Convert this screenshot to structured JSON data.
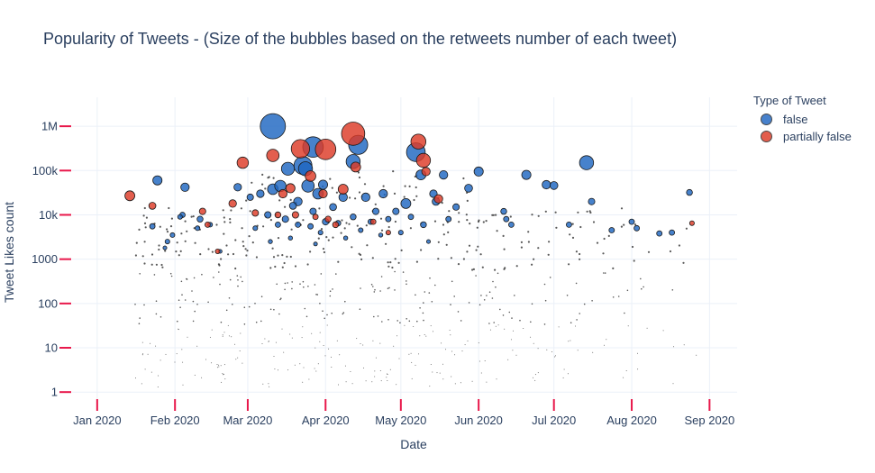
{
  "chart_data": {
    "type": "scatter",
    "title": "Popularity of Tweets - (Size of the bubbles based on the retweets number of each tweet)",
    "xlabel": "Date",
    "ylabel": "Tweet Likes count",
    "y_scale": "log",
    "ylim": [
      0.5,
      4500000
    ],
    "xlim": [
      "2019-12-22",
      "2020-09-12"
    ],
    "x_tick_labels": [
      "Jan 2020",
      "Feb 2020",
      "Mar 2020",
      "Apr 2020",
      "May 2020",
      "Jun 2020",
      "Jul 2020",
      "Aug 2020",
      "Sep 2020"
    ],
    "x_ticks": [
      "2020-01-01",
      "2020-02-01",
      "2020-03-01",
      "2020-04-01",
      "2020-05-01",
      "2020-06-01",
      "2020-07-01",
      "2020-08-01",
      "2020-09-01"
    ],
    "y_tick_labels": [
      "1",
      "10",
      "100",
      "1000",
      "10k",
      "100k",
      "1M"
    ],
    "y_ticks": [
      1,
      10,
      100,
      1000,
      10000,
      100000,
      1000000
    ],
    "grid": true,
    "legend": {
      "title": "Type of Tweet",
      "position": "top-right"
    },
    "colors": {
      "false": "#1f66c1",
      "partially false": "#dd3b27",
      "tick": "#e8174a",
      "grid": "#ebf0f8"
    },
    "series": [
      {
        "name": "false",
        "points": [
          [
            "2020-03-11",
            1000000,
            45000
          ],
          [
            "2020-03-27",
            340000,
            30000
          ],
          [
            "2020-04-14",
            380000,
            26000
          ],
          [
            "2020-05-07",
            260000,
            25000
          ],
          [
            "2020-07-14",
            150000,
            14000
          ],
          [
            "2020-04-12",
            160000,
            14000
          ],
          [
            "2020-03-23",
            130000,
            23000
          ],
          [
            "2020-03-24",
            110000,
            14000
          ],
          [
            "2020-03-17",
            110000,
            12000
          ],
          [
            "2020-03-25",
            45000,
            11000
          ],
          [
            "2020-03-11",
            38000,
            8000
          ],
          [
            "2020-03-14",
            45000,
            9000
          ],
          [
            "2020-01-25",
            60000,
            6000
          ],
          [
            "2020-02-05",
            42000,
            5000
          ],
          [
            "2020-03-29",
            30000,
            8000
          ],
          [
            "2020-05-09",
            80000,
            7000
          ],
          [
            "2020-06-01",
            95000,
            6000
          ],
          [
            "2020-06-20",
            80000,
            6000
          ],
          [
            "2020-06-28",
            48000,
            5000
          ],
          [
            "2020-07-01",
            46000,
            4500
          ],
          [
            "2020-05-28",
            40000,
            4500
          ],
          [
            "2020-05-18",
            80000,
            5000
          ],
          [
            "2020-05-03",
            18000,
            7000
          ],
          [
            "2020-04-17",
            25000,
            5000
          ],
          [
            "2020-04-08",
            25000,
            5000
          ],
          [
            "2020-03-21",
            20000,
            5000
          ],
          [
            "2020-03-31",
            48000,
            6000
          ],
          [
            "2020-04-24",
            30000,
            5000
          ],
          [
            "2020-03-06",
            30000,
            4000
          ],
          [
            "2020-02-26",
            42000,
            4000
          ],
          [
            "2020-03-02",
            25000,
            3000
          ],
          [
            "2020-05-14",
            30000,
            4000
          ],
          [
            "2020-05-15",
            20000,
            4000
          ],
          [
            "2020-07-16",
            20000,
            3000
          ],
          [
            "2020-08-24",
            32000,
            2500
          ],
          [
            "2020-02-11",
            8000,
            2500
          ],
          [
            "2020-01-23",
            5500,
            2000
          ],
          [
            "2020-02-04",
            10000,
            2000
          ],
          [
            "2020-06-11",
            12000,
            2500
          ],
          [
            "2020-06-12",
            8000,
            2000
          ],
          [
            "2020-06-14",
            6000,
            2000
          ],
          [
            "2020-08-01",
            7000,
            2000
          ],
          [
            "2020-08-03",
            5000,
            2000
          ],
          [
            "2020-08-12",
            3800,
            2000
          ],
          [
            "2020-08-17",
            4000,
            2000
          ],
          [
            "2020-07-07",
            6000,
            2000
          ],
          [
            "2020-07-24",
            4500,
            2000
          ],
          [
            "2020-05-23",
            15000,
            3000
          ],
          [
            "2020-04-04",
            15000,
            3500
          ],
          [
            "2020-04-21",
            12000,
            3000
          ],
          [
            "2020-03-19",
            16000,
            3500
          ],
          [
            "2020-03-09",
            10000,
            3000
          ],
          [
            "2020-03-16",
            8000,
            3000
          ],
          [
            "2020-03-27",
            12000,
            3000
          ],
          [
            "2020-04-29",
            12000,
            3000
          ],
          [
            "2020-04-01",
            7000,
            3000
          ],
          [
            "2020-04-12",
            9000,
            2500
          ],
          [
            "2020-05-10",
            6000,
            2500
          ],
          [
            "2020-01-29",
            2500,
            1500
          ],
          [
            "2020-01-31",
            3500,
            1500
          ],
          [
            "2020-02-03",
            9000,
            1500
          ],
          [
            "2020-03-13",
            6000,
            2000
          ],
          [
            "2020-03-21",
            6000,
            2000
          ],
          [
            "2020-03-26",
            5500,
            2000
          ],
          [
            "2020-04-06",
            6500,
            2000
          ],
          [
            "2020-04-19",
            7000,
            2000
          ],
          [
            "2020-04-26",
            8000,
            2000
          ],
          [
            "2020-05-05",
            9000,
            2000
          ],
          [
            "2020-05-20",
            8000,
            2000
          ],
          [
            "2020-03-04",
            5000,
            1500
          ],
          [
            "2020-03-30",
            4000,
            1500
          ],
          [
            "2020-04-15",
            4500,
            1500
          ],
          [
            "2020-05-01",
            4000,
            1500
          ],
          [
            "2020-02-15",
            6000,
            1500
          ],
          [
            "2020-02-10",
            5000,
            1500
          ],
          [
            "2020-03-10",
            2500,
            1200
          ],
          [
            "2020-03-18",
            3000,
            1200
          ],
          [
            "2020-04-09",
            3000,
            1200
          ],
          [
            "2020-04-23",
            3500,
            1200
          ],
          [
            "2020-01-28",
            1800,
            1000
          ],
          [
            "2020-02-19",
            1500,
            1000
          ],
          [
            "2020-03-28",
            2200,
            1000
          ],
          [
            "2020-05-12",
            2500,
            1000
          ]
        ]
      },
      {
        "name": "partially false",
        "points": [
          [
            "2020-04-12",
            680000,
            38000
          ],
          [
            "2020-04-01",
            300000,
            30000
          ],
          [
            "2020-03-22",
            310000,
            24000
          ],
          [
            "2020-05-08",
            450000,
            16000
          ],
          [
            "2020-05-10",
            170000,
            14000
          ],
          [
            "2020-03-11",
            220000,
            11000
          ],
          [
            "2020-02-28",
            150000,
            9000
          ],
          [
            "2020-01-14",
            27000,
            7000
          ],
          [
            "2020-03-26",
            75000,
            8000
          ],
          [
            "2020-04-13",
            120000,
            7000
          ],
          [
            "2020-04-08",
            38000,
            7000
          ],
          [
            "2020-05-11",
            95000,
            5000
          ],
          [
            "2020-05-16",
            23000,
            5000
          ],
          [
            "2020-03-18",
            40000,
            6000
          ],
          [
            "2020-03-15",
            30000,
            5000
          ],
          [
            "2020-03-31",
            30000,
            5000
          ],
          [
            "2020-02-24",
            18000,
            4000
          ],
          [
            "2020-01-23",
            16000,
            3500
          ],
          [
            "2020-02-12",
            12000,
            3000
          ],
          [
            "2020-03-04",
            11000,
            3000
          ],
          [
            "2020-03-20",
            10000,
            3000
          ],
          [
            "2020-04-02",
            8000,
            2500
          ],
          [
            "2020-04-05",
            6000,
            2500
          ],
          [
            "2020-03-13",
            10000,
            2500
          ],
          [
            "2020-02-14",
            6000,
            2000
          ],
          [
            "2020-03-28",
            9000,
            2000
          ],
          [
            "2020-04-20",
            7000,
            2000
          ],
          [
            "2020-02-18",
            1500,
            1500
          ],
          [
            "2020-08-25",
            6500,
            1500
          ],
          [
            "2020-04-26",
            4000,
            1500
          ]
        ]
      }
    ]
  }
}
